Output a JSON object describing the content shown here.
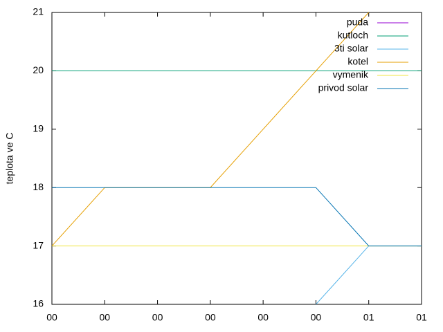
{
  "chart_data": {
    "type": "line",
    "ylabel": "teplota ve C",
    "x": [
      0,
      1,
      2,
      3,
      4,
      5,
      6,
      7
    ],
    "xlim": [
      0,
      7
    ],
    "xticks": [
      {
        "value": 0,
        "label": "00"
      },
      {
        "value": 1,
        "label": "00"
      },
      {
        "value": 2,
        "label": "00"
      },
      {
        "value": 3,
        "label": "00"
      },
      {
        "value": 4,
        "label": "00"
      },
      {
        "value": 5,
        "label": "00"
      },
      {
        "value": 6,
        "label": "01"
      },
      {
        "value": 7,
        "label": "01"
      }
    ],
    "ylim": [
      16,
      21
    ],
    "yticks": [
      16,
      17,
      18,
      19,
      20,
      21
    ],
    "legend": "top-right",
    "series": [
      {
        "name": "puda",
        "color": "#9400d3",
        "values": [
          null,
          null,
          null,
          null,
          null,
          null,
          null,
          null
        ]
      },
      {
        "name": "kutloch",
        "color": "#009e73",
        "values": [
          20,
          20,
          20,
          20,
          20,
          20,
          20,
          20
        ]
      },
      {
        "name": "3ti solar",
        "color": "#56b4e9",
        "values": [
          null,
          null,
          null,
          null,
          null,
          16,
          17,
          17
        ]
      },
      {
        "name": "kotel",
        "color": "#e69f00",
        "values": [
          17,
          18,
          18,
          18,
          19,
          20,
          21,
          null
        ]
      },
      {
        "name": "vymenik",
        "color": "#f0e442",
        "values": [
          17,
          17,
          17,
          17,
          17,
          17,
          17,
          17
        ]
      },
      {
        "name": "privod solar",
        "color": "#0072b2",
        "values": [
          18,
          18,
          18,
          18,
          18,
          18,
          17,
          17
        ]
      }
    ]
  }
}
